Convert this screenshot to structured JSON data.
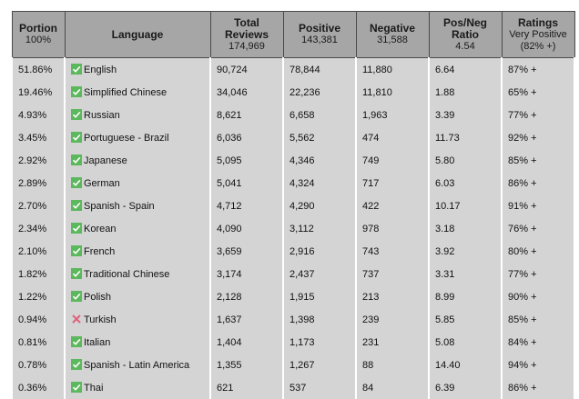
{
  "header": [
    {
      "title": [
        "Portion"
      ],
      "sub": [
        "100%"
      ]
    },
    {
      "title": [
        "Language"
      ],
      "sub": []
    },
    {
      "title": [
        "Total",
        "Reviews"
      ],
      "sub": [
        "174,969"
      ]
    },
    {
      "title": [
        "Positive"
      ],
      "sub": [
        "143,381"
      ]
    },
    {
      "title": [
        "Negative"
      ],
      "sub": [
        "31,588"
      ]
    },
    {
      "title": [
        "Pos/Neg",
        "Ratio"
      ],
      "sub": [
        "4.54"
      ]
    },
    {
      "title": [
        "Ratings"
      ],
      "sub": [
        "Very Positive",
        "(82% +)"
      ]
    }
  ],
  "table": {
    "rows": [
      {
        "portion": "51.86%",
        "supported": true,
        "language": "English",
        "total": "90,724",
        "positive": "78,844",
        "negative": "11,880",
        "ratio": "6.64",
        "rating": "87% +"
      },
      {
        "portion": "19.46%",
        "supported": true,
        "language": "Simplified Chinese",
        "total": "34,046",
        "positive": "22,236",
        "negative": "11,810",
        "ratio": "1.88",
        "rating": "65% +"
      },
      {
        "portion": "4.93%",
        "supported": true,
        "language": "Russian",
        "total": "8,621",
        "positive": "6,658",
        "negative": "1,963",
        "ratio": "3.39",
        "rating": "77% +"
      },
      {
        "portion": "3.45%",
        "supported": true,
        "language": "Portuguese - Brazil",
        "total": "6,036",
        "positive": "5,562",
        "negative": "474",
        "ratio": "11.73",
        "rating": "92% +"
      },
      {
        "portion": "2.92%",
        "supported": true,
        "language": "Japanese",
        "total": "5,095",
        "positive": "4,346",
        "negative": "749",
        "ratio": "5.80",
        "rating": "85% +"
      },
      {
        "portion": "2.89%",
        "supported": true,
        "language": "German",
        "total": "5,041",
        "positive": "4,324",
        "negative": "717",
        "ratio": "6.03",
        "rating": "86% +"
      },
      {
        "portion": "2.70%",
        "supported": true,
        "language": "Spanish - Spain",
        "total": "4,712",
        "positive": "4,290",
        "negative": "422",
        "ratio": "10.17",
        "rating": "91% +"
      },
      {
        "portion": "2.34%",
        "supported": true,
        "language": "Korean",
        "total": "4,090",
        "positive": "3,112",
        "negative": "978",
        "ratio": "3.18",
        "rating": "76% +"
      },
      {
        "portion": "2.10%",
        "supported": true,
        "language": "French",
        "total": "3,659",
        "positive": "2,916",
        "negative": "743",
        "ratio": "3.92",
        "rating": "80% +"
      },
      {
        "portion": "1.82%",
        "supported": true,
        "language": "Traditional Chinese",
        "total": "3,174",
        "positive": "2,437",
        "negative": "737",
        "ratio": "3.31",
        "rating": "77% +"
      },
      {
        "portion": "1.22%",
        "supported": true,
        "language": "Polish",
        "total": "2,128",
        "positive": "1,915",
        "negative": "213",
        "ratio": "8.99",
        "rating": "90% +"
      },
      {
        "portion": "0.94%",
        "supported": false,
        "language": "Turkish",
        "total": "1,637",
        "positive": "1,398",
        "negative": "239",
        "ratio": "5.85",
        "rating": "85% +"
      },
      {
        "portion": "0.81%",
        "supported": true,
        "language": "Italian",
        "total": "1,404",
        "positive": "1,173",
        "negative": "231",
        "ratio": "5.08",
        "rating": "84% +"
      },
      {
        "portion": "0.78%",
        "supported": true,
        "language": "Spanish - Latin America",
        "total": "1,355",
        "positive": "1,267",
        "negative": "88",
        "ratio": "14.40",
        "rating": "94% +"
      },
      {
        "portion": "0.36%",
        "supported": true,
        "language": "Thai",
        "total": "621",
        "positive": "537",
        "negative": "84",
        "ratio": "6.39",
        "rating": "86% +"
      }
    ]
  }
}
